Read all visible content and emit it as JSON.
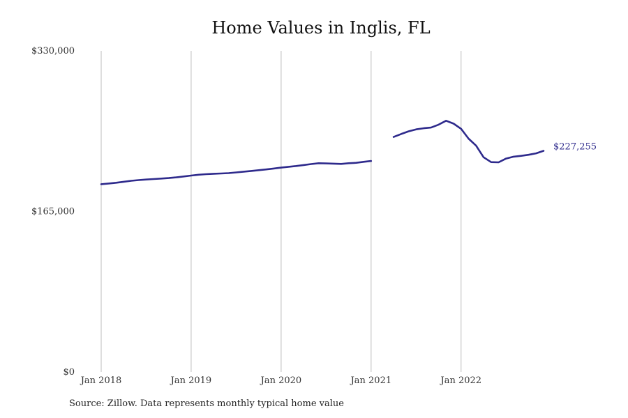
{
  "chart_data": {
    "type": "line",
    "title": "Home Values in Inglis, FL",
    "source": "Source: Zillow. Data represents monthly typical home value",
    "ylim": [
      0,
      330000
    ],
    "y_ticks": [
      {
        "value": 0,
        "label": "$0"
      },
      {
        "value": 165000,
        "label": "$165,000"
      },
      {
        "value": 330000,
        "label": "$330,000"
      }
    ],
    "x_ticks": [
      {
        "date": "2018-01",
        "label": "Jan 2018"
      },
      {
        "date": "2019-01",
        "label": "Jan 2019"
      },
      {
        "date": "2020-01",
        "label": "Jan 2020"
      },
      {
        "date": "2021-01",
        "label": "Jan 2021"
      },
      {
        "date": "2022-01",
        "label": "Jan 2022"
      }
    ],
    "x_range": [
      "2018-01",
      "2022-12"
    ],
    "grid": "vertical",
    "line_color": "#2e2a8c",
    "end_label": "$227,255",
    "series": [
      {
        "segments": [
          [
            {
              "x": "2018-01",
              "y": 193000
            },
            {
              "x": "2018-02",
              "y": 193700
            },
            {
              "x": "2018-03",
              "y": 194500
            },
            {
              "x": "2018-04",
              "y": 195500
            },
            {
              "x": "2018-05",
              "y": 196500
            },
            {
              "x": "2018-06",
              "y": 197200
            },
            {
              "x": "2018-07",
              "y": 197800
            },
            {
              "x": "2018-08",
              "y": 198300
            },
            {
              "x": "2018-09",
              "y": 198800
            },
            {
              "x": "2018-10",
              "y": 199300
            },
            {
              "x": "2018-11",
              "y": 200000
            },
            {
              "x": "2018-12",
              "y": 200900
            },
            {
              "x": "2019-01",
              "y": 201900
            },
            {
              "x": "2019-02",
              "y": 202700
            },
            {
              "x": "2019-03",
              "y": 203300
            },
            {
              "x": "2019-04",
              "y": 203700
            },
            {
              "x": "2019-05",
              "y": 204000
            },
            {
              "x": "2019-06",
              "y": 204400
            },
            {
              "x": "2019-07",
              "y": 205100
            },
            {
              "x": "2019-08",
              "y": 205900
            },
            {
              "x": "2019-09",
              "y": 206600
            },
            {
              "x": "2019-10",
              "y": 207400
            },
            {
              "x": "2019-11",
              "y": 208200
            },
            {
              "x": "2019-12",
              "y": 209100
            },
            {
              "x": "2020-01",
              "y": 210000
            },
            {
              "x": "2020-02",
              "y": 210900
            },
            {
              "x": "2020-03",
              "y": 211700
            },
            {
              "x": "2020-04",
              "y": 212700
            },
            {
              "x": "2020-05",
              "y": 213700
            },
            {
              "x": "2020-06",
              "y": 214500
            },
            {
              "x": "2020-07",
              "y": 214300
            },
            {
              "x": "2020-08",
              "y": 214100
            },
            {
              "x": "2020-09",
              "y": 213800
            },
            {
              "x": "2020-10",
              "y": 214500
            },
            {
              "x": "2020-11",
              "y": 215000
            },
            {
              "x": "2020-12",
              "y": 216000
            },
            {
              "x": "2021-01",
              "y": 216800
            }
          ],
          [
            {
              "x": "2021-04",
              "y": 241500
            },
            {
              "x": "2021-05",
              "y": 244500
            },
            {
              "x": "2021-06",
              "y": 247300
            },
            {
              "x": "2021-07",
              "y": 249300
            },
            {
              "x": "2021-08",
              "y": 250500
            },
            {
              "x": "2021-09",
              "y": 251200
            },
            {
              "x": "2021-10",
              "y": 254200
            },
            {
              "x": "2021-11",
              "y": 258200
            },
            {
              "x": "2021-12",
              "y": 255200
            },
            {
              "x": "2022-01",
              "y": 249900
            },
            {
              "x": "2022-02",
              "y": 239800
            },
            {
              "x": "2022-03",
              "y": 232600
            },
            {
              "x": "2022-04",
              "y": 220700
            },
            {
              "x": "2022-05",
              "y": 215700
            },
            {
              "x": "2022-06",
              "y": 215500
            },
            {
              "x": "2022-07",
              "y": 219300
            },
            {
              "x": "2022-08",
              "y": 221300
            },
            {
              "x": "2022-09",
              "y": 222100
            },
            {
              "x": "2022-10",
              "y": 223200
            },
            {
              "x": "2022-11",
              "y": 224700
            },
            {
              "x": "2022-12",
              "y": 227255
            }
          ]
        ]
      }
    ]
  }
}
